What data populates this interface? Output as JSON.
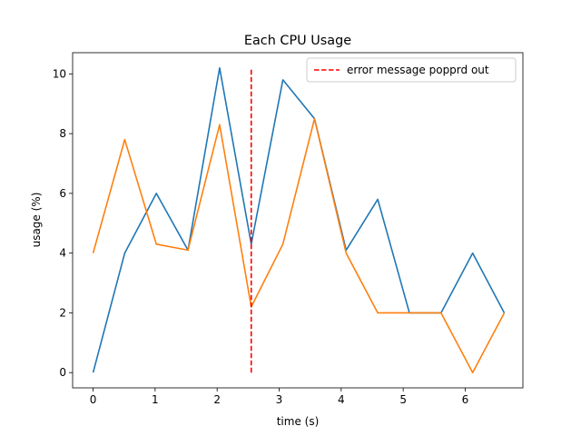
{
  "chart_data": {
    "type": "line",
    "title": "Each CPU Usage",
    "xlabel": "time (s)",
    "ylabel": "usage (%)",
    "xlim": [
      -0.33,
      6.93
    ],
    "ylim": [
      -0.51,
      10.71
    ],
    "xticks": [
      0,
      1,
      2,
      3,
      4,
      5,
      6
    ],
    "yticks": [
      0,
      2,
      4,
      6,
      8,
      10
    ],
    "grid": false,
    "legend_position": "top-right",
    "x": [
      0,
      0.51,
      1.02,
      1.53,
      2.04,
      2.55,
      3.06,
      3.57,
      4.08,
      4.59,
      5.1,
      5.61,
      6.12,
      6.63
    ],
    "series": [
      {
        "color": "#1f77b4",
        "values": [
          0,
          4,
          6,
          4.1,
          10.2,
          4.3,
          9.8,
          8.5,
          4.1,
          5.8,
          2,
          2,
          4,
          2
        ]
      },
      {
        "color": "#ff7f0e",
        "values": [
          4,
          7.8,
          4.3,
          4.1,
          8.3,
          2.2,
          4.3,
          8.5,
          4,
          2,
          2,
          2,
          0,
          2
        ]
      }
    ],
    "annotations": [
      {
        "type": "vline",
        "x": 2.55,
        "y_from": 0,
        "y_to": 10.2,
        "color": "#ff0000",
        "style": "dashed",
        "label": "error message popprd out"
      }
    ]
  }
}
